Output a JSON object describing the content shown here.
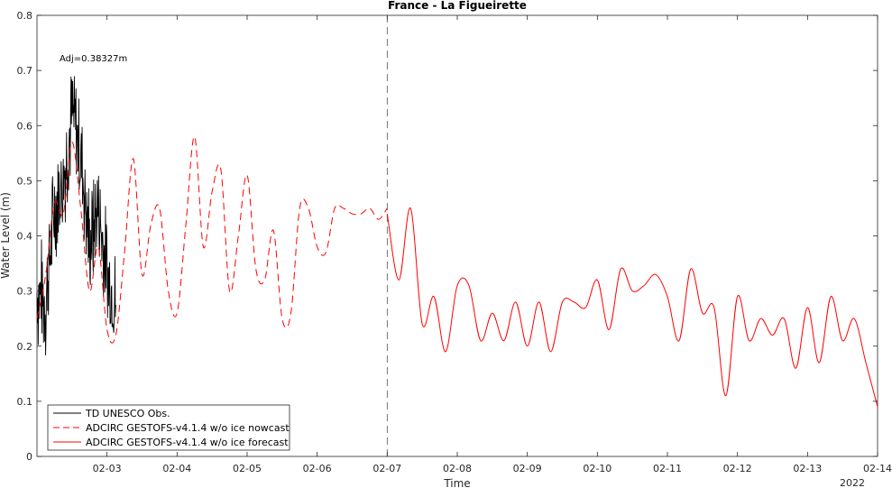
{
  "chart_data": {
    "type": "line",
    "title": "France - La Figueirette",
    "xlabel": "Time",
    "ylabel": "Water Level (m)",
    "year_label": "2022",
    "annotation": "Adj=0.38327m",
    "xlim": [
      "2022-02-02 00:00",
      "2022-02-14 00:00"
    ],
    "ylim": [
      0,
      0.8
    ],
    "x_ticks": [
      "02-03",
      "02-04",
      "02-05",
      "02-06",
      "02-07",
      "02-08",
      "02-09",
      "02-10",
      "02-11",
      "02-12",
      "02-13",
      "02-14"
    ],
    "y_ticks": [
      "0",
      "0.1",
      "0.2",
      "0.3",
      "0.4",
      "0.5",
      "0.6",
      "0.7",
      "0.8"
    ],
    "grid": false,
    "legend_position": "bottom-left",
    "forecast_start": "2022-02-07 00:00",
    "series": [
      {
        "name": "TD UNESCO Obs.",
        "color": "#000000",
        "style": "solid",
        "x": [
          "2022-02-02 00:00",
          "2022-02-02 03:00",
          "2022-02-02 06:00",
          "2022-02-02 09:00",
          "2022-02-02 12:00",
          "2022-02-02 15:00",
          "2022-02-02 18:00",
          "2022-02-02 21:00",
          "2022-02-03 00:00",
          "2022-02-03 03:00"
        ],
        "y": [
          0.3,
          0.28,
          0.45,
          0.5,
          0.62,
          0.55,
          0.38,
          0.45,
          0.33,
          0.28
        ],
        "noise_amplitude": 0.1
      },
      {
        "name": "ADCIRC GESTOFS-v4.1.4 w/o ice nowcast",
        "color": "#ff0000",
        "style": "dashed",
        "x": [
          "2022-02-02 00:00",
          "2022-02-02 03:00",
          "2022-02-02 06:00",
          "2022-02-02 09:00",
          "2022-02-02 12:00",
          "2022-02-02 15:00",
          "2022-02-02 18:00",
          "2022-02-02 21:00",
          "2022-02-03 00:00",
          "2022-02-03 03:00",
          "2022-02-03 06:00",
          "2022-02-03 09:00",
          "2022-02-03 12:00",
          "2022-02-03 15:00",
          "2022-02-03 18:00",
          "2022-02-03 21:00",
          "2022-02-04 00:00",
          "2022-02-04 03:00",
          "2022-02-04 06:00",
          "2022-02-04 09:00",
          "2022-02-04 12:00",
          "2022-02-04 15:00",
          "2022-02-04 18:00",
          "2022-02-04 21:00",
          "2022-02-05 00:00",
          "2022-02-05 03:00",
          "2022-02-05 06:00",
          "2022-02-05 09:00",
          "2022-02-05 12:00",
          "2022-02-05 15:00",
          "2022-02-05 18:00",
          "2022-02-05 21:00",
          "2022-02-06 00:00",
          "2022-02-06 03:00",
          "2022-02-06 06:00",
          "2022-02-06 09:00",
          "2022-02-06 12:00",
          "2022-02-06 15:00",
          "2022-02-06 18:00",
          "2022-02-06 21:00",
          "2022-02-07 00:00"
        ],
        "y": [
          0.25,
          0.33,
          0.46,
          0.44,
          0.57,
          0.45,
          0.3,
          0.38,
          0.23,
          0.22,
          0.37,
          0.54,
          0.33,
          0.42,
          0.45,
          0.3,
          0.26,
          0.42,
          0.58,
          0.38,
          0.48,
          0.52,
          0.3,
          0.4,
          0.51,
          0.34,
          0.32,
          0.41,
          0.25,
          0.26,
          0.45,
          0.45,
          0.38,
          0.37,
          0.45,
          0.45,
          0.44,
          0.44,
          0.45,
          0.43,
          0.45
        ],
        "stop_index": 40
      },
      {
        "name": "ADCIRC GESTOFS-v4.1.4 w/o ice forecast",
        "color": "#ff0000",
        "style": "solid",
        "x": [
          "2022-02-07 00:00",
          "2022-02-07 04:00",
          "2022-02-07 08:00",
          "2022-02-07 12:00",
          "2022-02-07 16:00",
          "2022-02-07 20:00",
          "2022-02-08 00:00",
          "2022-02-08 04:00",
          "2022-02-08 08:00",
          "2022-02-08 12:00",
          "2022-02-08 16:00",
          "2022-02-08 20:00",
          "2022-02-09 00:00",
          "2022-02-09 04:00",
          "2022-02-09 08:00",
          "2022-02-09 12:00",
          "2022-02-09 16:00",
          "2022-02-09 20:00",
          "2022-02-10 00:00",
          "2022-02-10 04:00",
          "2022-02-10 08:00",
          "2022-02-10 12:00",
          "2022-02-10 16:00",
          "2022-02-10 20:00",
          "2022-02-11 00:00",
          "2022-02-11 04:00",
          "2022-02-11 08:00",
          "2022-02-11 12:00",
          "2022-02-11 16:00",
          "2022-02-11 20:00",
          "2022-02-12 00:00",
          "2022-02-12 04:00",
          "2022-02-12 08:00",
          "2022-02-12 12:00",
          "2022-02-12 16:00",
          "2022-02-12 20:00",
          "2022-02-13 00:00",
          "2022-02-13 04:00",
          "2022-02-13 08:00",
          "2022-02-13 12:00",
          "2022-02-13 16:00",
          "2022-02-13 20:00",
          "2022-02-14 00:00"
        ],
        "y": [
          0.44,
          0.32,
          0.45,
          0.24,
          0.29,
          0.19,
          0.31,
          0.31,
          0.21,
          0.26,
          0.21,
          0.28,
          0.2,
          0.28,
          0.19,
          0.28,
          0.28,
          0.27,
          0.32,
          0.23,
          0.34,
          0.3,
          0.31,
          0.33,
          0.29,
          0.21,
          0.34,
          0.26,
          0.27,
          0.11,
          0.29,
          0.21,
          0.25,
          0.22,
          0.25,
          0.16,
          0.27,
          0.17,
          0.29,
          0.21,
          0.25,
          0.17,
          0.09
        ]
      }
    ]
  }
}
